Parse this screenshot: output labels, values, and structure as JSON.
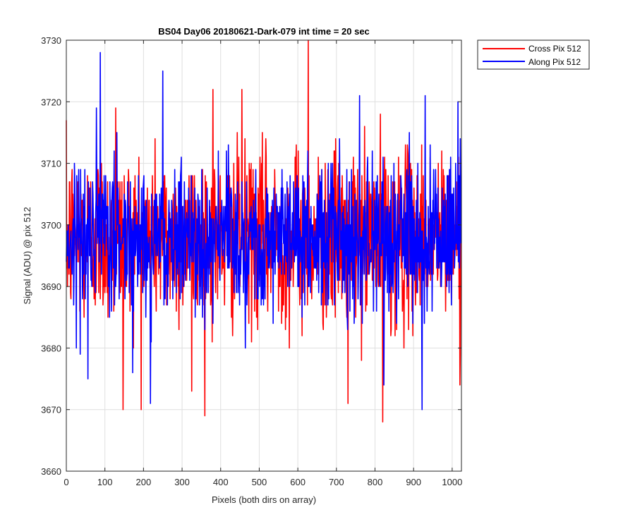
{
  "chart_data": {
    "type": "line",
    "title": "BS04 Day06 20180621-Dark-079 int time = 20 sec",
    "xlabel": "Pixels (both dirs on array)",
    "ylabel": "Signal (ADU) @ pix 512",
    "xlim": [
      0,
      1024
    ],
    "ylim": [
      3660,
      3730
    ],
    "xticks": [
      0,
      100,
      200,
      300,
      400,
      500,
      600,
      700,
      800,
      900,
      1000
    ],
    "yticks": [
      3660,
      3670,
      3680,
      3690,
      3700,
      3710,
      3720,
      3730
    ],
    "grid": true,
    "legend_position": "outside-top-right",
    "series": [
      {
        "name": "Cross Pix 512",
        "color": "#ff0000",
        "mean": 3698,
        "noise_std": 7,
        "n_points": 1024,
        "notable_points": [
          {
            "x": 147,
            "y": 3670
          },
          {
            "x": 627,
            "y": 3730
          },
          {
            "x": 820,
            "y": 3668
          },
          {
            "x": 730,
            "y": 3671
          },
          {
            "x": 325,
            "y": 3673
          },
          {
            "x": 1020,
            "y": 3674
          },
          {
            "x": 380,
            "y": 3722
          },
          {
            "x": 455,
            "y": 3722
          },
          {
            "x": 128,
            "y": 3719
          }
        ]
      },
      {
        "name": "Along Pix 512",
        "color": "#0000ff",
        "mean": 3698,
        "noise_std": 6,
        "n_points": 1024,
        "notable_points": [
          {
            "x": 88,
            "y": 3728
          },
          {
            "x": 250,
            "y": 3725
          },
          {
            "x": 218,
            "y": 3671
          },
          {
            "x": 922,
            "y": 3670
          },
          {
            "x": 823,
            "y": 3674
          },
          {
            "x": 56,
            "y": 3675
          },
          {
            "x": 1015,
            "y": 3720
          },
          {
            "x": 930,
            "y": 3721
          },
          {
            "x": 760,
            "y": 3721
          }
        ]
      }
    ]
  }
}
